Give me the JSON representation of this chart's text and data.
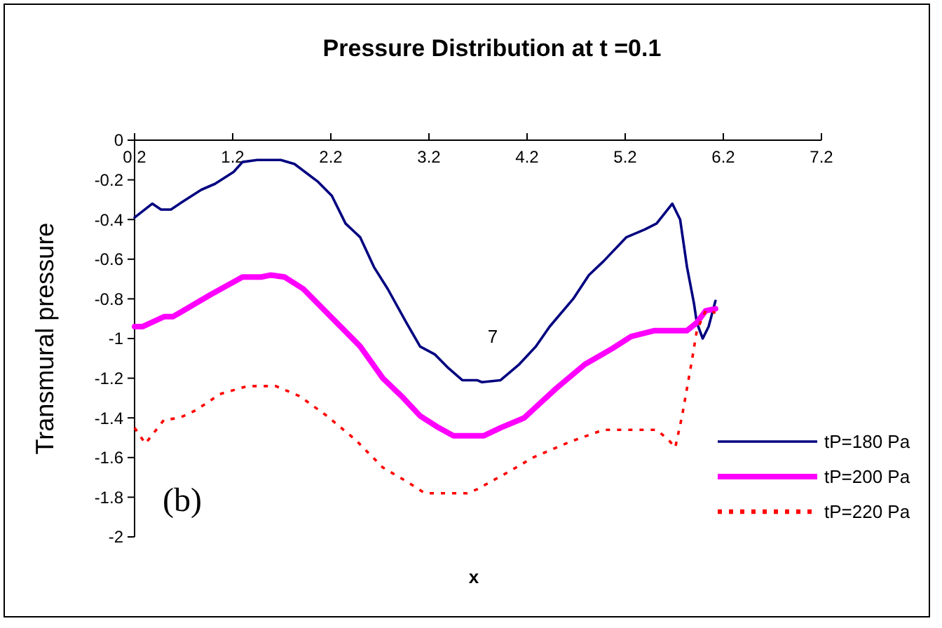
{
  "chart_data": {
    "type": "line",
    "title": "Pressure Distribution at t =0.1",
    "xlabel": "x",
    "ylabel": "Transmural pressure",
    "xlim": [
      0.2,
      7.2
    ],
    "xticks": [
      0.2,
      1.2,
      2.2,
      3.2,
      4.2,
      5.2,
      6.2,
      7.2
    ],
    "ylim": [
      -2,
      0
    ],
    "yticks": [
      0,
      -0.2,
      -0.4,
      -0.6,
      -0.8,
      -1,
      -1.2,
      -1.4,
      -1.6,
      -1.8,
      -2
    ],
    "grid": false,
    "legend": "right",
    "marker": "none",
    "annotations": [
      "7",
      "(b)"
    ],
    "series": [
      {
        "name": "tP=180 Pa",
        "color": "#000080",
        "line_style": "solid",
        "x": [
          0.2,
          0.38,
          0.47,
          0.57,
          0.69,
          0.88,
          1.02,
          1.21,
          1.3,
          1.45,
          1.69,
          1.83,
          2.07,
          2.21,
          2.35,
          2.5,
          2.64,
          2.78,
          2.97,
          3.11,
          3.26,
          3.4,
          3.54,
          3.69,
          3.74,
          3.93,
          4.12,
          4.29,
          4.43,
          4.67,
          4.83,
          4.98,
          5.21,
          5.4,
          5.52,
          5.68,
          5.76,
          5.83,
          5.9,
          5.93,
          5.99,
          6.05,
          6.12
        ],
        "values": [
          -0.39,
          -0.32,
          -0.35,
          -0.35,
          -0.31,
          -0.25,
          -0.22,
          -0.16,
          -0.11,
          -0.1,
          -0.1,
          -0.12,
          -0.21,
          -0.28,
          -0.42,
          -0.49,
          -0.64,
          -0.75,
          -0.92,
          -1.04,
          -1.08,
          -1.15,
          -1.21,
          -1.21,
          -1.22,
          -1.21,
          -1.13,
          -1.04,
          -0.94,
          -0.8,
          -0.68,
          -0.61,
          -0.49,
          -0.45,
          -0.42,
          -0.32,
          -0.4,
          -0.64,
          -0.82,
          -0.92,
          -1,
          -0.94,
          -0.81
        ]
      },
      {
        "name": "tP=200 Pa",
        "color": "#ff00ff",
        "line_style": "solid",
        "x": [
          0.2,
          0.28,
          0.5,
          0.59,
          0.73,
          0.97,
          1.3,
          1.49,
          1.59,
          1.73,
          1.92,
          2.26,
          2.5,
          2.73,
          2.92,
          3.11,
          3.3,
          3.45,
          3.69,
          3.76,
          3.93,
          4.17,
          4.5,
          4.79,
          5.07,
          5.26,
          5.5,
          5.83,
          5.93,
          6.02,
          6.12
        ],
        "values": [
          -0.94,
          -0.94,
          -0.89,
          -0.89,
          -0.85,
          -0.78,
          -0.69,
          -0.69,
          -0.68,
          -0.69,
          -0.75,
          -0.92,
          -1.04,
          -1.2,
          -1.29,
          -1.39,
          -1.45,
          -1.49,
          -1.49,
          -1.49,
          -1.45,
          -1.4,
          -1.25,
          -1.13,
          -1.05,
          -0.99,
          -0.96,
          -0.96,
          -0.92,
          -0.86,
          -0.85
        ]
      },
      {
        "name": "tP=220 Pa",
        "color": "#ff0000",
        "line_style": "dotted",
        "x": [
          0.2,
          0.31,
          0.5,
          0.66,
          0.83,
          1.07,
          1.35,
          1.64,
          1.88,
          2.16,
          2.45,
          2.73,
          2.97,
          3.16,
          3.59,
          3.69,
          4.02,
          4.26,
          4.64,
          4.98,
          5.21,
          5.52,
          5.64,
          5.71,
          5.78,
          5.88,
          5.93,
          6.02,
          6.12
        ],
        "values": [
          -1.45,
          -1.53,
          -1.41,
          -1.4,
          -1.36,
          -1.28,
          -1.24,
          -1.24,
          -1.29,
          -1.39,
          -1.51,
          -1.65,
          -1.72,
          -1.78,
          -1.78,
          -1.76,
          -1.67,
          -1.6,
          -1.52,
          -1.46,
          -1.46,
          -1.46,
          -1.51,
          -1.55,
          -1.39,
          -1.11,
          -0.96,
          -0.86,
          -0.87
        ]
      }
    ]
  }
}
